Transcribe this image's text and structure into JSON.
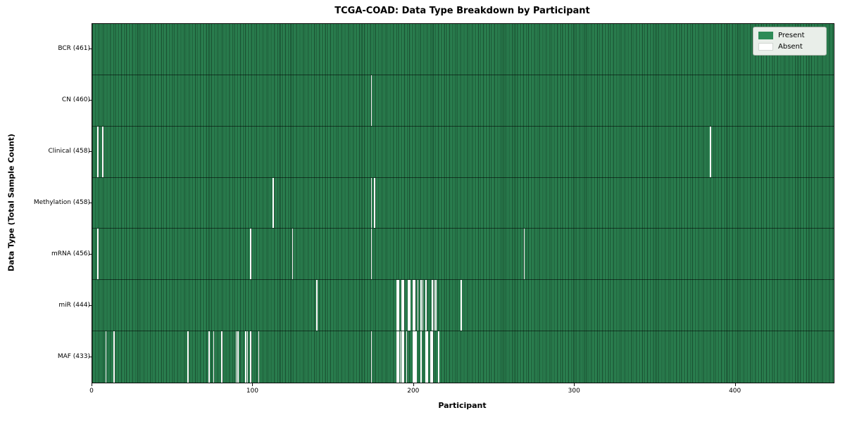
{
  "title": "TCGA-COAD: Data Type Breakdown by Participant",
  "chart_data": {
    "type": "heatmap",
    "title": "TCGA-COAD: Data Type Breakdown by Participant",
    "xlabel": "Participant",
    "ylabel": "Data Type (Total Sample Count)",
    "n_participants": 461,
    "xlim": [
      0,
      461
    ],
    "x_ticks": [
      0,
      100,
      200,
      300,
      400
    ],
    "grid": false,
    "legend_position": "upper right",
    "legend": [
      "Present",
      "Absent"
    ],
    "colors": {
      "present": "#2e8b57",
      "cell_edge": "#16452a",
      "absent": "#ffffff",
      "row_separator": "#1b1b1b",
      "legend_background": "#e9eee9"
    },
    "rows": [
      {
        "name": "BCR",
        "label": "BCR (461)",
        "total": 461,
        "absent_participants": []
      },
      {
        "name": "CN",
        "label": "CN (460)",
        "total": 460,
        "absent_participants": [
          173
        ]
      },
      {
        "name": "Clinical",
        "label": "Clinical (458)",
        "total": 458,
        "absent_participants": [
          3,
          6,
          384
        ]
      },
      {
        "name": "Methylation",
        "label": "Methylation (458)",
        "total": 458,
        "absent_participants": [
          112,
          173,
          175
        ]
      },
      {
        "name": "mRNA",
        "label": "mRNA (456)",
        "total": 456,
        "absent_participants": [
          3,
          98,
          124,
          173,
          268
        ]
      },
      {
        "name": "miR",
        "label": "miR (444)",
        "total": 444,
        "absent_participants": [
          139,
          189,
          190,
          192,
          193,
          196,
          197,
          199,
          200,
          202,
          204,
          205,
          207,
          211,
          212,
          213,
          229
        ]
      },
      {
        "name": "MAF",
        "label": "MAF (433)",
        "total": 433,
        "absent_participants": [
          8,
          13,
          59,
          72,
          75,
          80,
          89,
          90,
          95,
          96,
          98,
          103,
          173,
          189,
          190,
          191,
          192,
          193,
          195,
          199,
          200,
          201,
          204,
          207,
          208,
          210,
          211,
          215
        ]
      }
    ]
  }
}
